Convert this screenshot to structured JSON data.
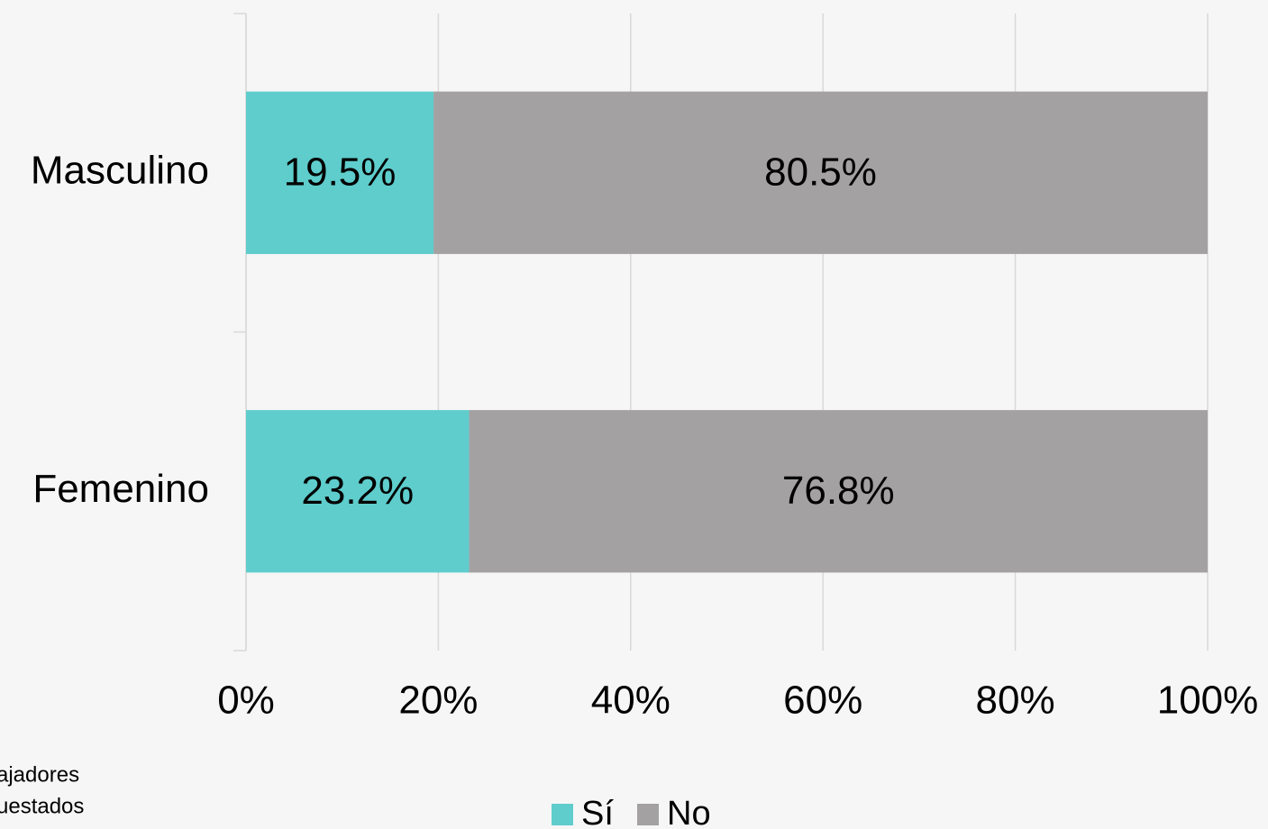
{
  "chart_data": {
    "type": "stacked_bar_horizontal",
    "categories": [
      "Masculino",
      "Femenino"
    ],
    "series": [
      {
        "name": "Sí",
        "color": "#5ecdcc",
        "values": [
          19.5,
          23.2
        ],
        "value_labels": [
          "19.5%",
          "23.2%"
        ]
      },
      {
        "name": "No",
        "color": "#a3a1a2",
        "values": [
          80.5,
          76.8
        ],
        "value_labels": [
          "80.5%",
          "76.8%"
        ]
      }
    ],
    "xlim": [
      0,
      100
    ],
    "xticks": [
      {
        "value": 0,
        "label": "0%"
      },
      {
        "value": 20,
        "label": "20%"
      },
      {
        "value": 40,
        "label": "40%"
      },
      {
        "value": 60,
        "label": "60%"
      },
      {
        "value": 80,
        "label": "80%"
      },
      {
        "value": 100,
        "label": "100%"
      }
    ],
    "grid": true,
    "legend": "bottom",
    "annotations": [
      "ajadores",
      "uestados"
    ]
  }
}
